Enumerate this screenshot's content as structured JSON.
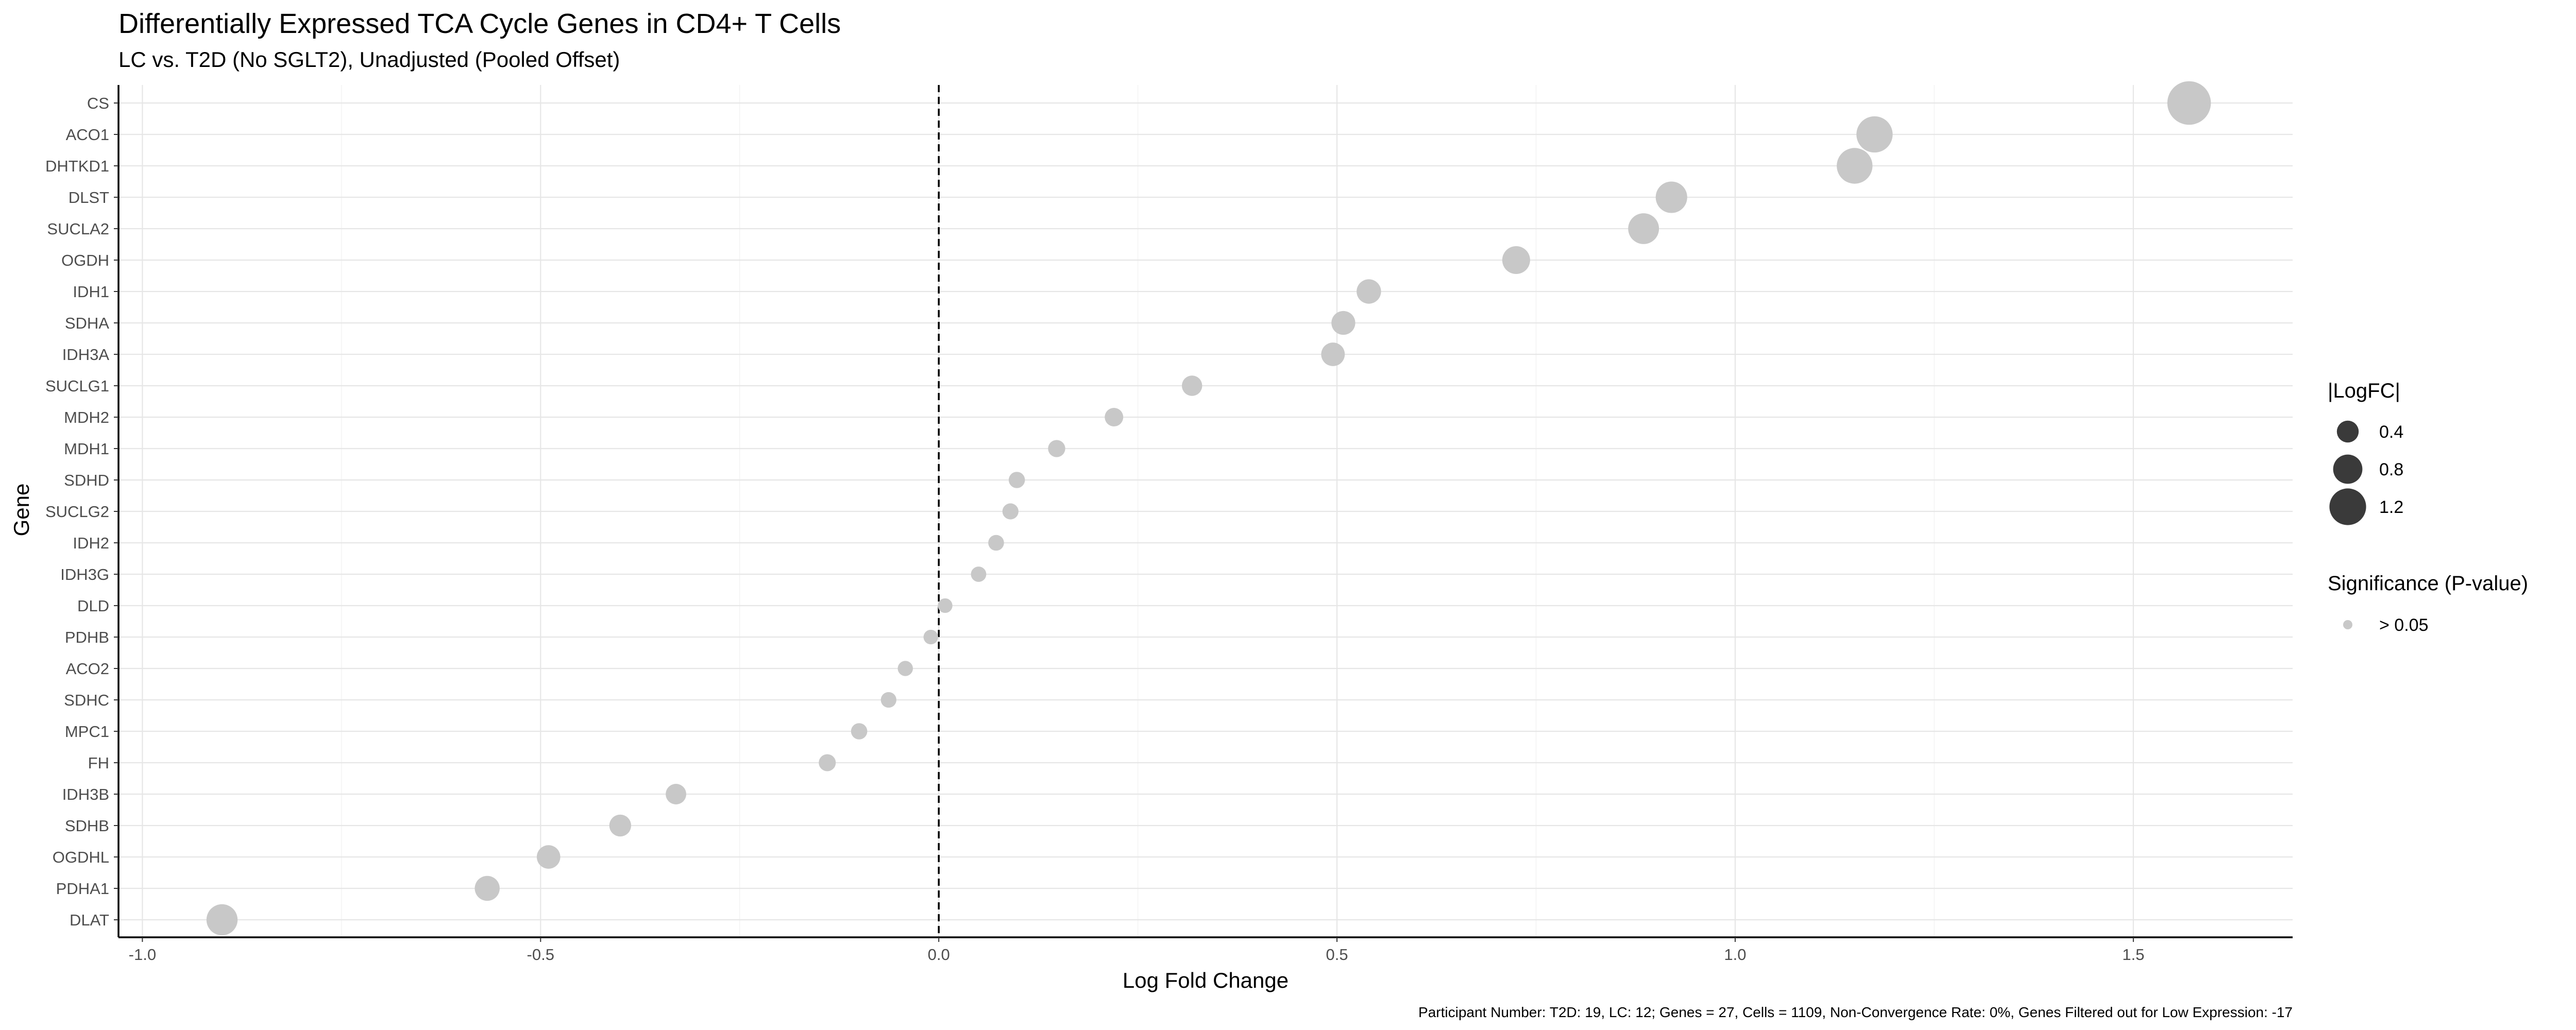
{
  "chart_data": {
    "type": "scatter",
    "title": "Differentially Expressed TCA Cycle Genes in CD4+ T Cells",
    "subtitle": "LC vs. T2D (No SGLT2), Unadjusted (Pooled Offset)",
    "xlabel": "Log Fold Change",
    "ylabel": "Gene",
    "xlim": [
      -1.03,
      1.7
    ],
    "xticks": [
      -1.0,
      -0.5,
      0.0,
      0.5,
      1.0,
      1.5
    ],
    "xtick_labels": [
      "-1.0",
      "-0.5",
      "0.0",
      "0.5",
      "1.0",
      "1.5"
    ],
    "reference_line_x": 0,
    "grid": true,
    "legend_position": "right",
    "point_color": "#c8c8c8",
    "legend_size": {
      "title": "|LogFC|",
      "values": [
        0.4,
        0.8,
        1.2
      ],
      "labels": [
        "0.4",
        "0.8",
        "1.2"
      ],
      "color": "#3a3a3a"
    },
    "legend_color": {
      "title": "Significance (P-value)",
      "labels": [
        "> 0.05"
      ],
      "colors": [
        "#c8c8c8"
      ]
    },
    "caption": "Participant Number: T2D: 19, LC: 12; Genes = 27, Cells = 1109, Non-Convergence Rate: 0%, Genes Filtered out for Low Expression: -17",
    "points": [
      {
        "gene": "CS",
        "logfc": 1.57
      },
      {
        "gene": "ACO1",
        "logfc": 1.175
      },
      {
        "gene": "DHTKD1",
        "logfc": 1.15
      },
      {
        "gene": "DLST",
        "logfc": 0.92
      },
      {
        "gene": "SUCLA2",
        "logfc": 0.885
      },
      {
        "gene": "OGDH",
        "logfc": 0.725
      },
      {
        "gene": "IDH1",
        "logfc": 0.54
      },
      {
        "gene": "SDHA",
        "logfc": 0.508
      },
      {
        "gene": "IDH3A",
        "logfc": 0.495
      },
      {
        "gene": "SUCLG1",
        "logfc": 0.318
      },
      {
        "gene": "MDH2",
        "logfc": 0.22
      },
      {
        "gene": "MDH1",
        "logfc": 0.148
      },
      {
        "gene": "SDHD",
        "logfc": 0.098
      },
      {
        "gene": "SUCLG2",
        "logfc": 0.09
      },
      {
        "gene": "IDH2",
        "logfc": 0.072
      },
      {
        "gene": "IDH3G",
        "logfc": 0.05
      },
      {
        "gene": "DLD",
        "logfc": 0.008
      },
      {
        "gene": "PDHB",
        "logfc": -0.01
      },
      {
        "gene": "ACO2",
        "logfc": -0.042
      },
      {
        "gene": "SDHC",
        "logfc": -0.063
      },
      {
        "gene": "MPC1",
        "logfc": -0.1
      },
      {
        "gene": "FH",
        "logfc": -0.14
      },
      {
        "gene": "IDH3B",
        "logfc": -0.33
      },
      {
        "gene": "SDHB",
        "logfc": -0.4
      },
      {
        "gene": "OGDHL",
        "logfc": -0.49
      },
      {
        "gene": "PDHA1",
        "logfc": -0.567
      },
      {
        "gene": "DLAT",
        "logfc": -0.9
      }
    ]
  }
}
